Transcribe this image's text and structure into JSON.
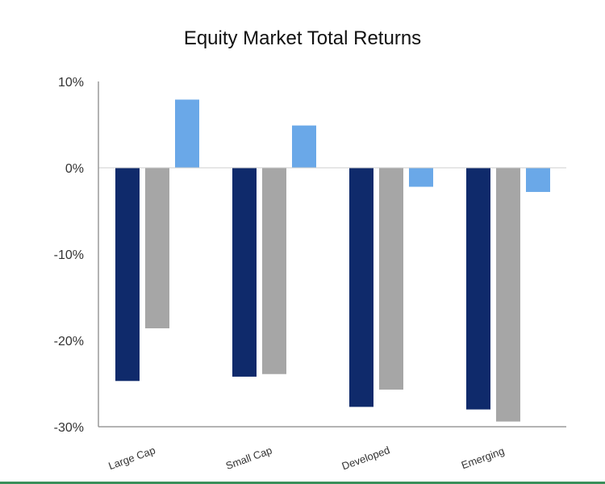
{
  "chart_data": {
    "type": "bar",
    "title": "Equity Market Total Returns",
    "xlabel": "",
    "ylabel": "",
    "categories": [
      "Large Cap",
      "Small Cap",
      "Developed",
      "Emerging"
    ],
    "series": [
      {
        "color": "#0f2a6b",
        "values": [
          -24.7,
          -24.2,
          -27.7,
          -28.0
        ]
      },
      {
        "color": "#a6a6a6",
        "values": [
          -18.6,
          -23.9,
          -25.7,
          -29.4
        ]
      },
      {
        "color": "#6aa8e8",
        "values": [
          7.9,
          4.9,
          -2.2,
          -2.8
        ]
      }
    ],
    "ylim": [
      -30,
      10
    ],
    "yticks": [
      {
        "value": 10,
        "label": "10%"
      },
      {
        "value": 0,
        "label": "0%"
      },
      {
        "value": -10,
        "label": "-10%"
      },
      {
        "value": -20,
        "label": "-20%"
      },
      {
        "value": -30,
        "label": "-30%"
      }
    ],
    "grid": false,
    "legend": "none"
  }
}
